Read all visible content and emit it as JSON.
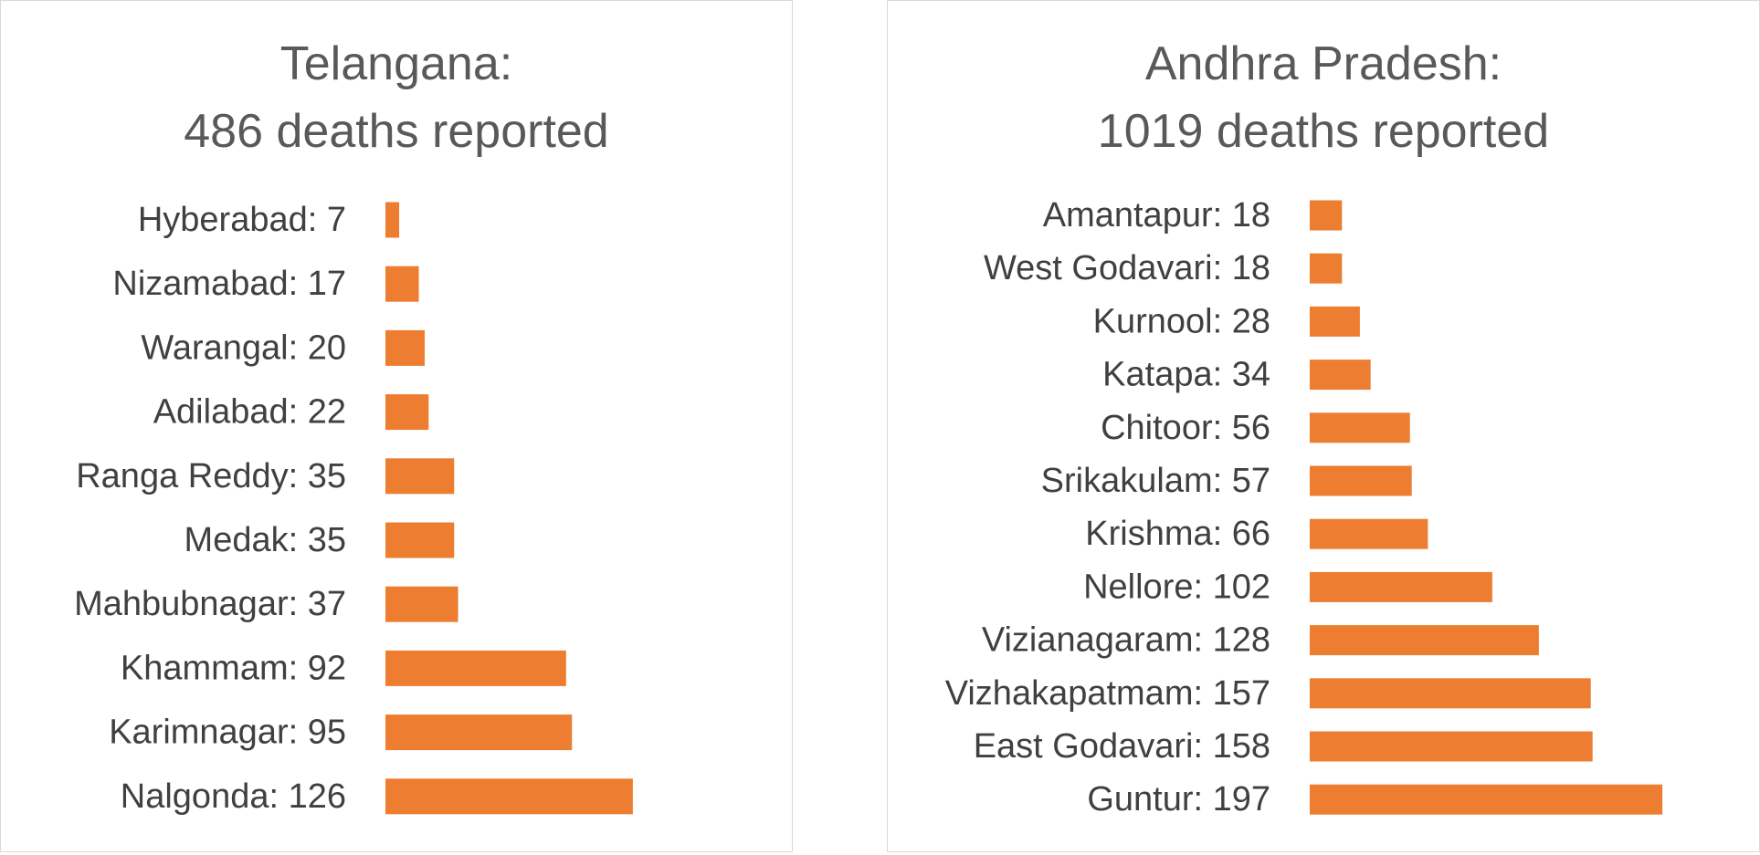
{
  "chart_data": [
    {
      "type": "bar",
      "orientation": "horizontal",
      "title": "Telangana:",
      "subtitle": "486 deaths reported",
      "categories": [
        "Hyberabad: 7",
        "Nizamabad: 17",
        "Warangal: 20",
        "Adilabad: 22",
        "Ranga Reddy: 35",
        "Medak: 35",
        "Mahbubnagar: 37",
        "Khammam: 92",
        "Karimnagar: 95",
        "Nalgonda: 126"
      ],
      "values": [
        7,
        17,
        20,
        22,
        35,
        35,
        37,
        92,
        95,
        126
      ],
      "bar_color": "#ED7D31",
      "grid": false,
      "legend": "none"
    },
    {
      "type": "bar",
      "orientation": "horizontal",
      "title": "Andhra Pradesh:",
      "subtitle": "1019 deaths reported",
      "categories": [
        "Amantapur: 18",
        "West Godavari: 18",
        "Kurnool: 28",
        "Katapa: 34",
        "Chitoor: 56",
        "Srikakulam: 57",
        "Krishma: 66",
        "Nellore: 102",
        "Vizianagaram: 128",
        "Vizhakapatmam: 157",
        "East Godavari: 158",
        "Guntur: 197"
      ],
      "values": [
        18,
        18,
        28,
        34,
        56,
        57,
        66,
        102,
        128,
        157,
        158,
        197
      ],
      "bar_color": "#ED7D31",
      "grid": false,
      "legend": "none"
    }
  ]
}
